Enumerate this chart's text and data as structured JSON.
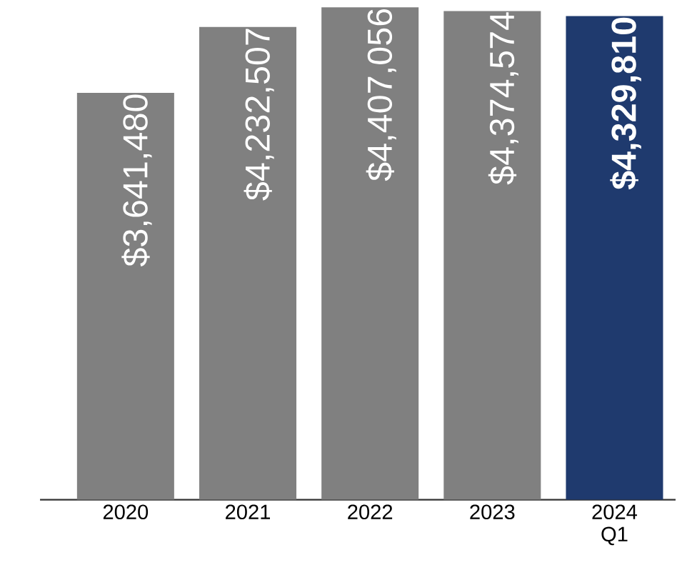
{
  "chart_data": {
    "type": "bar",
    "categories": [
      "2020",
      "2021",
      "2022",
      "2023",
      "2024 Q1"
    ],
    "values": [
      3641480,
      4232507,
      4407056,
      4374574,
      4329810
    ],
    "colors": [
      "#808080",
      "#808080",
      "#808080",
      "#808080",
      "#1f3a6e"
    ],
    "value_labels": [
      "$3,641,480",
      "$4,232,507",
      "$4,407,056",
      "$4,374,574",
      "**$4,329,810**"
    ],
    "tick_labels": "x"
  }
}
